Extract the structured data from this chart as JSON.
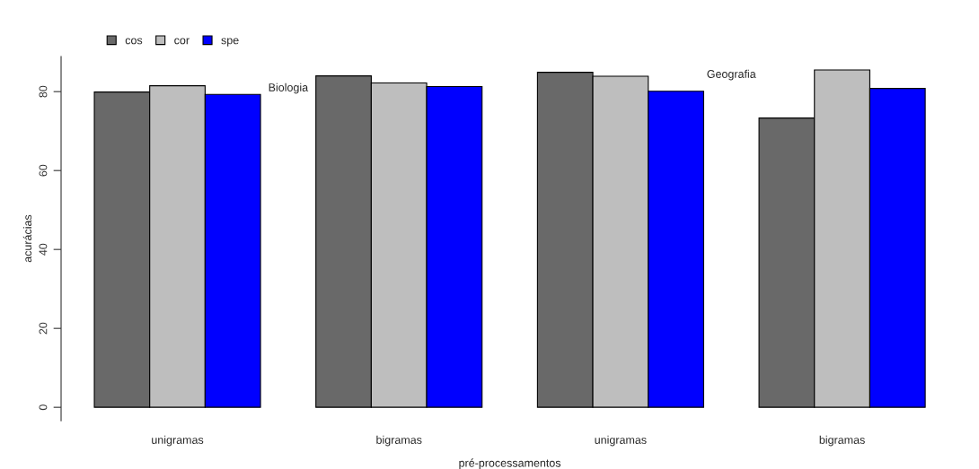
{
  "chart_data": {
    "type": "bar",
    "xlabel": "pré-processamentos",
    "ylabel": "acurácias",
    "categories": [
      "unigramas",
      "bigramas",
      "unigramas",
      "bigramas"
    ],
    "series": [
      {
        "name": "cos",
        "color": "#696969",
        "values": [
          79.9,
          84.0,
          84.9,
          73.3
        ]
      },
      {
        "name": "cor",
        "color": "#bebebe",
        "values": [
          81.5,
          82.2,
          83.9,
          85.5
        ]
      },
      {
        "name": "spe",
        "color": "#0000ff",
        "values": [
          79.3,
          81.3,
          80.1,
          80.8
        ]
      }
    ],
    "ylim": [
      -3.4,
      88.9
    ],
    "yticks": [
      0,
      20,
      40,
      60,
      80
    ],
    "annotations": [
      "Biologia",
      "Geografia"
    ],
    "legend": "top left",
    "grid": false
  }
}
